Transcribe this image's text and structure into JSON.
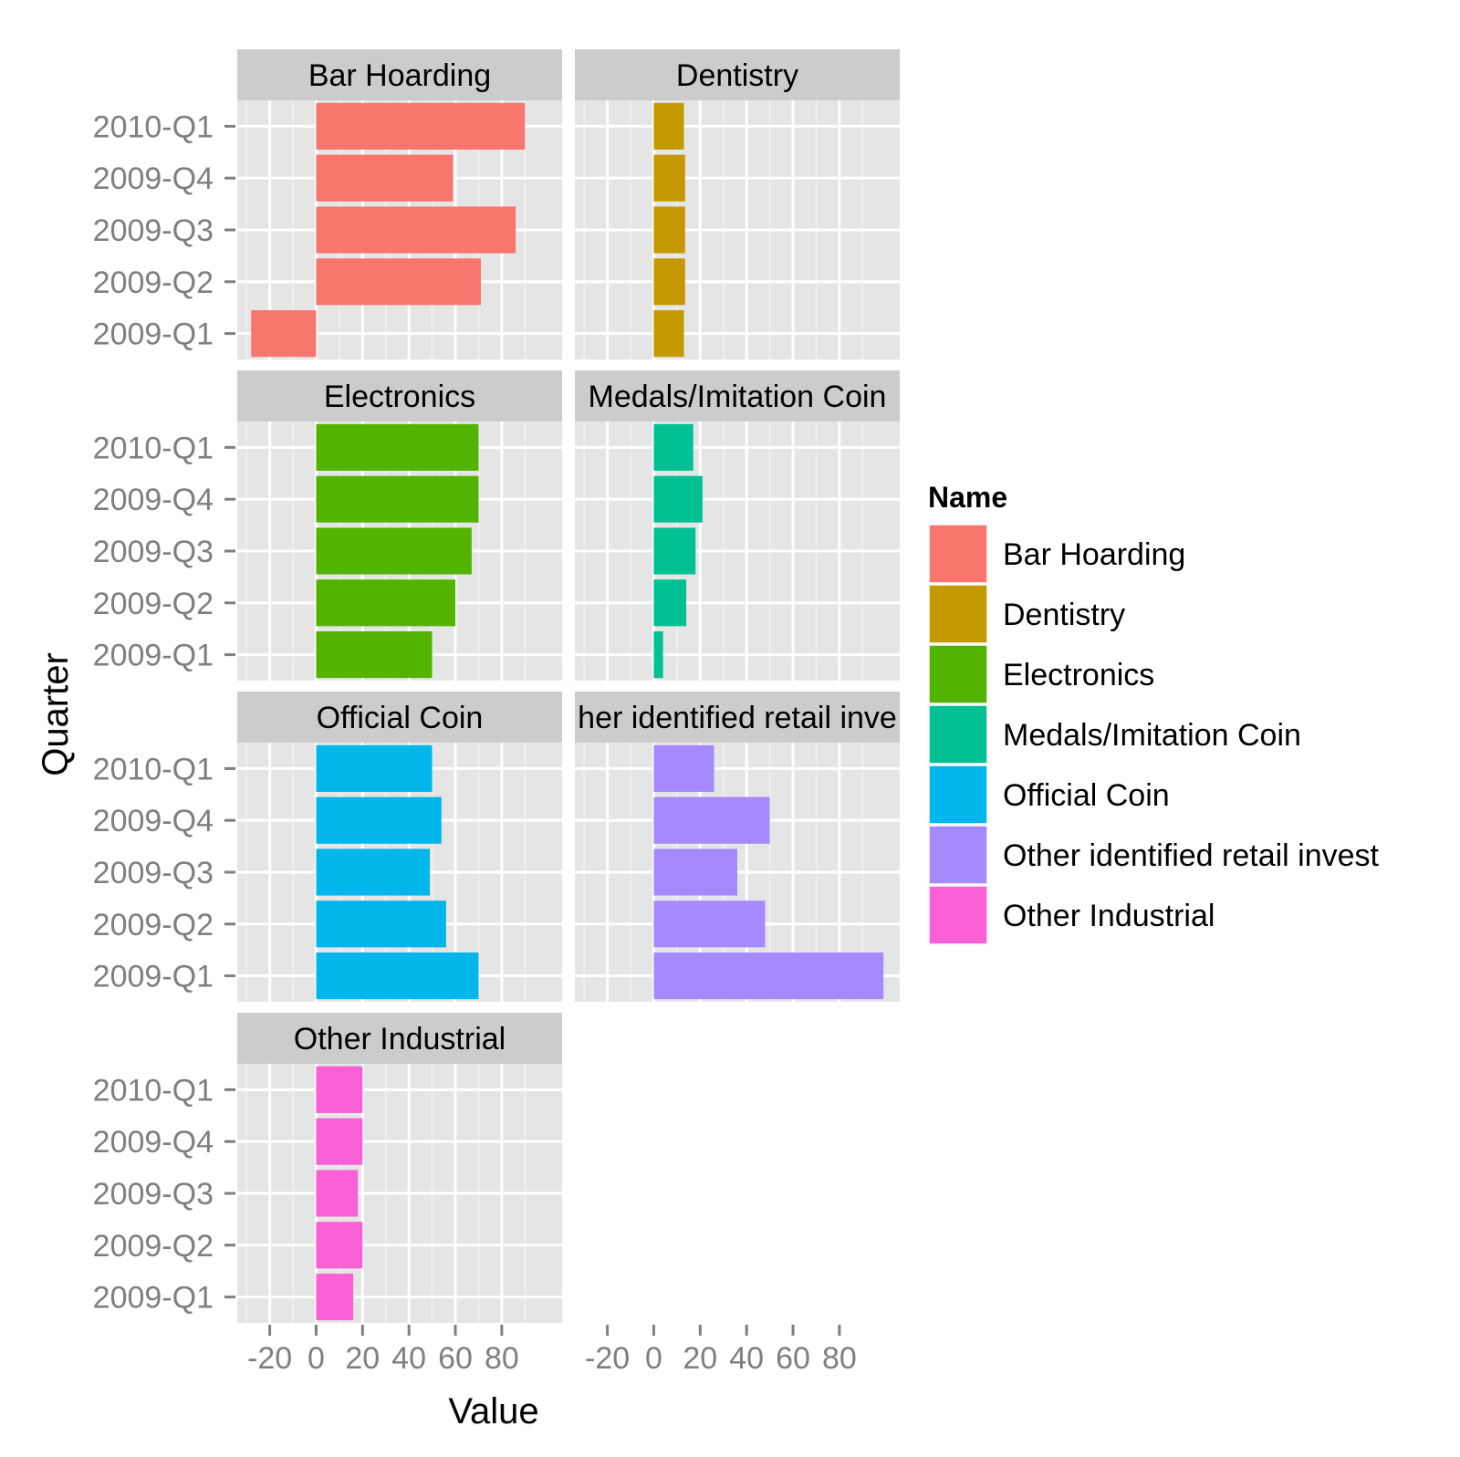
{
  "chart_data": {
    "type": "bar",
    "orientation": "horizontal",
    "xlabel": "Value",
    "ylabel": "Quarter",
    "categories": [
      "2009-Q1",
      "2009-Q2",
      "2009-Q3",
      "2009-Q4",
      "2010-Q1"
    ],
    "xlim": [
      -34,
      106
    ],
    "x_ticks": [
      -20,
      0,
      20,
      40,
      60,
      80
    ],
    "x_tick_labels": [
      "-20",
      "0",
      "20",
      "40",
      "60",
      "80"
    ],
    "grid": true,
    "legend": {
      "title": "Name",
      "placement": "right",
      "entries": [
        "Bar Hoarding",
        "Dentistry",
        "Electronics",
        "Medals/Imitation Coin",
        "Official Coin",
        "Other identified retail invest",
        "Other Industrial"
      ]
    },
    "series": [
      {
        "name": "Bar Hoarding",
        "panel_label": "Bar Hoarding",
        "color": "#F8766D",
        "values": [
          -28,
          71,
          86,
          59,
          90
        ]
      },
      {
        "name": "Dentistry",
        "panel_label": "Dentistry",
        "color": "#C49A00",
        "values": [
          13,
          13.5,
          13.5,
          13.5,
          13
        ]
      },
      {
        "name": "Electronics",
        "panel_label": "Electronics",
        "color": "#53B400",
        "values": [
          50,
          60,
          67,
          70,
          70
        ]
      },
      {
        "name": "Medals/Imitation Coin",
        "panel_label": "Medals/Imitation Coin",
        "color": "#00C094",
        "values": [
          4,
          14,
          18,
          21,
          17
        ]
      },
      {
        "name": "Official Coin",
        "panel_label": "Official Coin",
        "color": "#00B6EB",
        "values": [
          70,
          56,
          49,
          54,
          50
        ]
      },
      {
        "name": "Other identified retail invest",
        "panel_label": "her identified retail inve",
        "color": "#A58AFF",
        "values": [
          99,
          48,
          36,
          50,
          26
        ]
      },
      {
        "name": "Other Industrial",
        "panel_label": "Other Industrial",
        "color": "#FB61D7",
        "values": [
          16,
          20,
          18,
          20,
          20
        ]
      }
    ]
  }
}
